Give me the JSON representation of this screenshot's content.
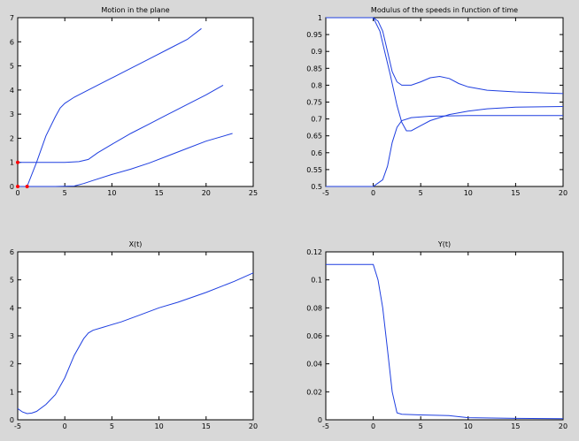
{
  "colors": {
    "line": "#1f3fe0",
    "marker": "#ff0000",
    "axes_bg": "#ffffff",
    "figure_bg": "#d8d8d8"
  },
  "chart_data": [
    {
      "type": "line",
      "title": "Motion in the plane",
      "xlabel": "",
      "ylabel": "",
      "xlim": [
        0,
        25
      ],
      "ylim": [
        0,
        7
      ],
      "xticks": [
        0,
        5,
        10,
        15,
        20,
        25
      ],
      "yticks": [
        0,
        1,
        2,
        3,
        4,
        5,
        6,
        7
      ],
      "series": [
        {
          "points": [
            [
              1,
              0
            ],
            [
              2,
              1.0
            ],
            [
              3,
              2.1
            ],
            [
              4,
              2.9
            ],
            [
              4.5,
              3.25
            ],
            [
              5,
              3.45
            ],
            [
              6,
              3.7
            ],
            [
              8,
              4.1
            ],
            [
              10,
              4.5
            ],
            [
              12,
              4.9
            ],
            [
              14,
              5.3
            ],
            [
              16,
              5.7
            ],
            [
              18,
              6.1
            ],
            [
              19.5,
              6.55
            ]
          ]
        },
        {
          "points": [
            [
              0,
              1.0
            ],
            [
              3,
              1.0
            ],
            [
              5,
              1.0
            ],
            [
              6.5,
              1.03
            ],
            [
              7.5,
              1.12
            ],
            [
              8.5,
              1.4
            ],
            [
              10,
              1.75
            ],
            [
              12,
              2.2
            ],
            [
              14,
              2.6
            ],
            [
              16,
              3.0
            ],
            [
              18,
              3.4
            ],
            [
              20,
              3.8
            ],
            [
              21.8,
              4.2
            ]
          ]
        },
        {
          "points": [
            [
              0,
              0
            ],
            [
              4,
              0
            ],
            [
              6,
              0.02
            ],
            [
              7,
              0.12
            ],
            [
              8,
              0.25
            ],
            [
              10,
              0.5
            ],
            [
              12,
              0.72
            ],
            [
              14,
              0.98
            ],
            [
              16,
              1.28
            ],
            [
              18,
              1.58
            ],
            [
              20,
              1.88
            ],
            [
              22.8,
              2.2
            ]
          ]
        }
      ],
      "markers": [
        [
          0,
          1.0
        ],
        [
          1,
          0
        ],
        [
          0,
          0
        ]
      ]
    },
    {
      "type": "line",
      "title": "Modulus of the speeds in function of time",
      "xlabel": "",
      "ylabel": "",
      "xlim": [
        -5,
        20
      ],
      "ylim": [
        0.5,
        1.0
      ],
      "xticks": [
        -5,
        0,
        5,
        10,
        15,
        20
      ],
      "yticks": [
        0.5,
        0.55,
        0.6,
        0.65,
        0.7,
        0.75,
        0.8,
        0.85,
        0.9,
        0.95,
        1
      ],
      "series": [
        {
          "points": [
            [
              -5,
              1.0
            ],
            [
              0,
              1.0
            ],
            [
              0.5,
              0.99
            ],
            [
              1,
              0.96
            ],
            [
              1.5,
              0.9
            ],
            [
              2,
              0.84
            ],
            [
              2.5,
              0.81
            ],
            [
              3,
              0.8
            ],
            [
              4,
              0.8
            ],
            [
              5,
              0.81
            ],
            [
              6,
              0.822
            ],
            [
              7,
              0.826
            ],
            [
              8,
              0.82
            ],
            [
              9,
              0.805
            ],
            [
              10,
              0.795
            ],
            [
              12,
              0.785
            ],
            [
              15,
              0.78
            ],
            [
              20,
              0.775
            ]
          ]
        },
        {
          "points": [
            [
              -5,
              1.0
            ],
            [
              0,
              1.0
            ],
            [
              0.7,
              0.96
            ],
            [
              1.2,
              0.9
            ],
            [
              1.8,
              0.83
            ],
            [
              2.5,
              0.74
            ],
            [
              3,
              0.69
            ],
            [
              3.5,
              0.665
            ],
            [
              4,
              0.665
            ],
            [
              5,
              0.68
            ],
            [
              6,
              0.695
            ],
            [
              8,
              0.713
            ],
            [
              10,
              0.723
            ],
            [
              12,
              0.73
            ],
            [
              15,
              0.735
            ],
            [
              20,
              0.737
            ]
          ]
        },
        {
          "points": [
            [
              -5,
              0.5
            ],
            [
              0,
              0.5
            ],
            [
              0.5,
              0.51
            ],
            [
              1,
              0.52
            ],
            [
              1.5,
              0.56
            ],
            [
              2,
              0.63
            ],
            [
              2.5,
              0.675
            ],
            [
              3,
              0.695
            ],
            [
              4,
              0.704
            ],
            [
              6,
              0.708
            ],
            [
              10,
              0.71
            ],
            [
              15,
              0.71
            ],
            [
              20,
              0.71
            ]
          ]
        }
      ]
    },
    {
      "type": "line",
      "title": "X(t)",
      "xlabel": "",
      "ylabel": "",
      "xlim": [
        -5,
        20
      ],
      "ylim": [
        0,
        6
      ],
      "xticks": [
        -5,
        0,
        5,
        10,
        15,
        20
      ],
      "yticks": [
        0,
        1,
        2,
        3,
        4,
        5,
        6
      ],
      "series": [
        {
          "points": [
            [
              -5,
              0.4
            ],
            [
              -4.5,
              0.28
            ],
            [
              -4,
              0.22
            ],
            [
              -3.5,
              0.24
            ],
            [
              -3,
              0.3
            ],
            [
              -2,
              0.55
            ],
            [
              -1,
              0.9
            ],
            [
              0,
              1.5
            ],
            [
              1,
              2.3
            ],
            [
              2,
              2.9
            ],
            [
              2.5,
              3.1
            ],
            [
              3,
              3.2
            ],
            [
              4,
              3.3
            ],
            [
              5,
              3.4
            ],
            [
              6,
              3.5
            ],
            [
              8,
              3.75
            ],
            [
              10,
              4.0
            ],
            [
              12,
              4.2
            ],
            [
              15,
              4.55
            ],
            [
              18,
              4.95
            ],
            [
              20,
              5.25
            ]
          ]
        }
      ]
    },
    {
      "type": "line",
      "title": "Y(t)",
      "xlabel": "",
      "ylabel": "",
      "xlim": [
        -5,
        20
      ],
      "ylim": [
        0,
        0.12
      ],
      "xticks": [
        -5,
        0,
        5,
        10,
        15,
        20
      ],
      "yticks": [
        0,
        0.02,
        0.04,
        0.06,
        0.08,
        0.1,
        0.12
      ],
      "series": [
        {
          "points": [
            [
              -5,
              0.111
            ],
            [
              0,
              0.111
            ],
            [
              0.5,
              0.1
            ],
            [
              1,
              0.08
            ],
            [
              1.5,
              0.05
            ],
            [
              2,
              0.02
            ],
            [
              2.5,
              0.005
            ],
            [
              3,
              0.004
            ],
            [
              5,
              0.0035
            ],
            [
              8,
              0.003
            ],
            [
              10,
              0.0015
            ],
            [
              15,
              0.001
            ],
            [
              20,
              0.0008
            ]
          ]
        }
      ]
    }
  ]
}
